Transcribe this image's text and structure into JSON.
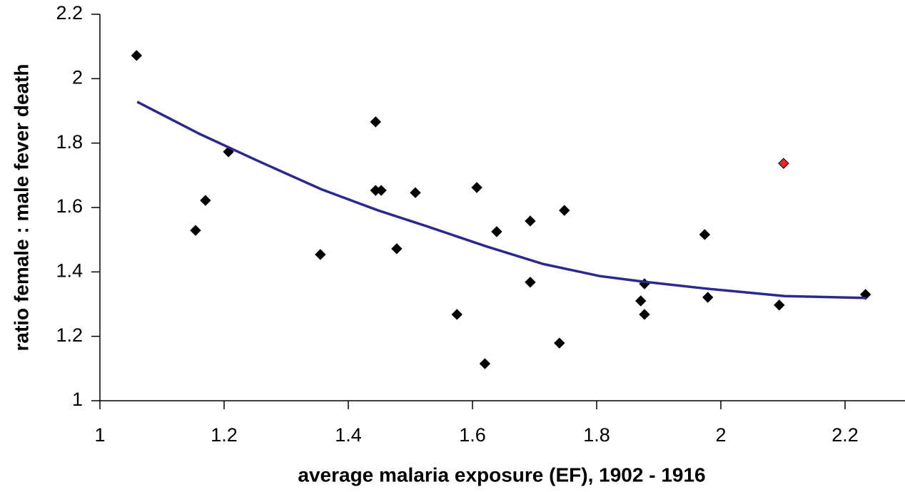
{
  "chart_data": {
    "type": "scatter",
    "x_label": "average malaria exposure (EF), 1902 - 1916",
    "y_label": "ratio female : male fever death",
    "xlim": [
      1,
      2.3
    ],
    "ylim": [
      1,
      2.2
    ],
    "xticks": [
      1,
      1.2,
      1.4,
      1.6,
      1.8,
      2,
      2.2
    ],
    "yticks": [
      1,
      1.2,
      1.4,
      1.6,
      1.8,
      2,
      2.2
    ],
    "series": [
      {
        "kind": "points",
        "color": "#000000",
        "x": [
          1.059,
          1.154,
          1.17,
          1.207,
          1.355,
          1.444,
          1.444,
          1.453,
          1.478,
          1.508,
          1.575,
          1.607,
          1.62,
          1.639,
          1.693,
          1.693,
          1.74,
          1.748,
          1.871,
          1.877,
          1.877,
          1.974,
          1.979,
          2.094,
          2.233
        ],
        "values": [
          2.072,
          1.529,
          1.622,
          1.773,
          1.454,
          1.866,
          1.653,
          1.653,
          1.472,
          1.646,
          1.268,
          1.662,
          1.115,
          1.525,
          1.558,
          1.368,
          1.179,
          1.591,
          1.31,
          1.363,
          1.268,
          1.516,
          1.321,
          1.297,
          1.33
        ]
      },
      {
        "kind": "points",
        "color": "#e8262a",
        "x": [
          2.101
        ],
        "values": [
          1.737
        ]
      },
      {
        "kind": "line",
        "color": "#2b2a8c",
        "x": [
          1.06,
          1.161,
          1.253,
          1.356,
          1.448,
          1.529,
          1.621,
          1.713,
          1.805,
          1.874,
          1.977,
          2.103,
          2.234
        ],
        "values": [
          1.928,
          1.828,
          1.746,
          1.657,
          1.591,
          1.54,
          1.48,
          1.425,
          1.387,
          1.37,
          1.348,
          1.325,
          1.319
        ]
      }
    ]
  }
}
